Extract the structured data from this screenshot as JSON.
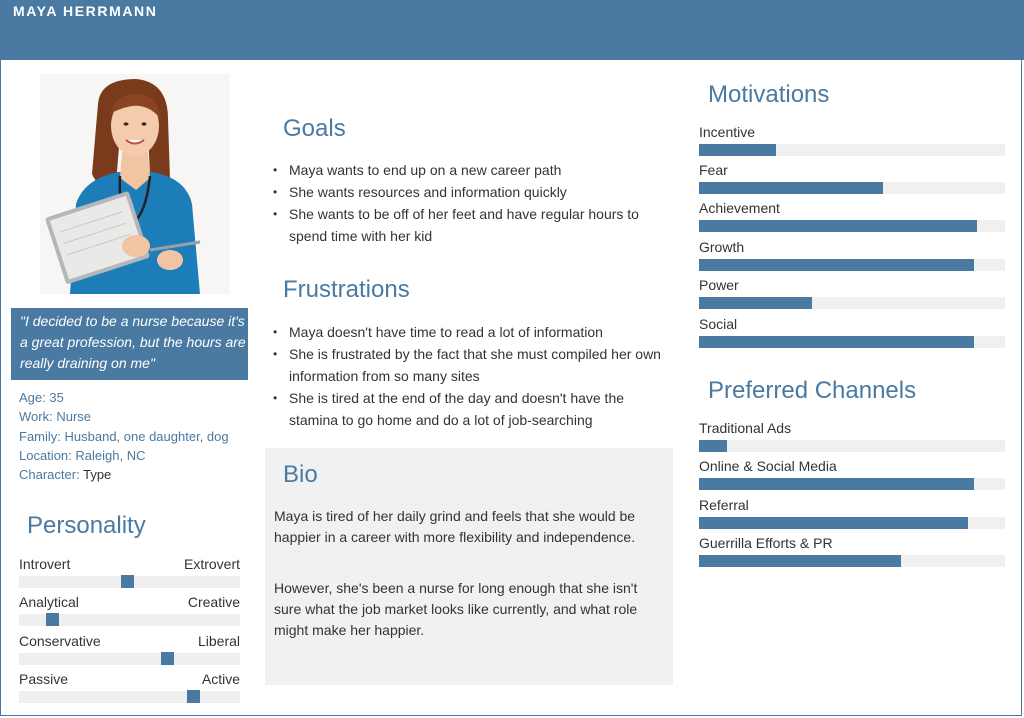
{
  "header": {
    "name": "MAYA HERRMANN"
  },
  "quote": "\"I decided to be a nurse because it's a great profession, but the hours are really draining on me\"",
  "info": [
    {
      "label": "Age:",
      "value": "35"
    },
    {
      "label": "Work:",
      "value": "Nurse"
    },
    {
      "label": "Family:",
      "value": "Husband, one daughter, dog"
    },
    {
      "label": "Location:",
      "value": "Raleigh, NC"
    },
    {
      "label": "Character:",
      "value": "Type"
    }
  ],
  "personality": {
    "title": "Personality",
    "sliders": [
      {
        "left": "Introvert",
        "right": "Extrovert",
        "value": 0.49
      },
      {
        "left": "Analytical",
        "right": "Creative",
        "value": 0.15
      },
      {
        "left": "Conservative",
        "right": "Liberal",
        "value": 0.67
      },
      {
        "left": "Passive",
        "right": "Active",
        "value": 0.79
      }
    ]
  },
  "goals": {
    "title": "Goals",
    "items": [
      "Maya wants to end up on a new career path",
      "She wants resources and information quickly",
      "She wants to be off of her feet and have regular hours to spend time with her kid"
    ]
  },
  "frustrations": {
    "title": "Frustrations",
    "items": [
      "Maya doesn't have time to read a lot of information",
      "She is frustrated by the fact that she must compiled her own information from so many sites",
      "She is tired at the end of the day and doesn't have the stamina to go home and do a lot of job-searching"
    ]
  },
  "bio": {
    "title": "Bio",
    "paragraphs": [
      "Maya is tired of her daily grind and feels that she would be happier in a career with more flexibility and independence.",
      "However, she's been a nurse for long enough that she isn't sure what the job market looks like currently, and what role might make her happier."
    ]
  },
  "motivations": {
    "title": "Motivations",
    "bars": [
      {
        "label": "Incentive",
        "value": 0.25
      },
      {
        "label": "Fear",
        "value": 0.6
      },
      {
        "label": "Achievement",
        "value": 0.91
      },
      {
        "label": "Growth",
        "value": 0.9
      },
      {
        "label": "Power",
        "value": 0.37
      },
      {
        "label": "Social",
        "value": 0.9
      }
    ]
  },
  "channels": {
    "title": "Preferred Channels",
    "bars": [
      {
        "label": "Traditional Ads",
        "value": 0.09
      },
      {
        "label": "Online & Social Media",
        "value": 0.9
      },
      {
        "label": "Referral",
        "value": 0.88
      },
      {
        "label": "Guerrilla Efforts & PR",
        "value": 0.66
      }
    ]
  },
  "colors": {
    "accent": "#4a7aa2",
    "track": "#f0f0f0",
    "bio_bg": "#f1f1f1"
  }
}
